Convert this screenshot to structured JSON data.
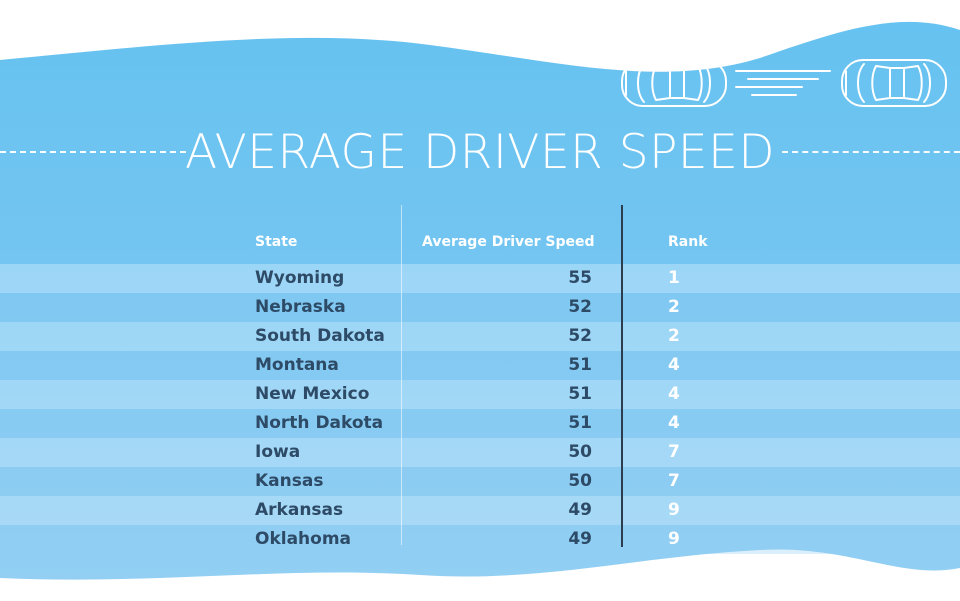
{
  "title": "AVERAGE DRIVER SPEED",
  "colors": {
    "background": "#6cc3ef",
    "row_light": "#a4d6f5",
    "row_dark": "#86c5f0",
    "text_dark": "#2d4a66",
    "white": "#ffffff",
    "separator": "#2d3d50"
  },
  "decoration": {
    "icon": "cars-icon"
  },
  "table": {
    "headers": [
      "State",
      "Average Driver Speed",
      "Rank"
    ],
    "rows": [
      {
        "state": "Wyoming",
        "speed": "55",
        "rank": "1"
      },
      {
        "state": "Nebraska",
        "speed": "52",
        "rank": "2"
      },
      {
        "state": "South Dakota",
        "speed": "52",
        "rank": "2"
      },
      {
        "state": "Montana",
        "speed": "51",
        "rank": "4"
      },
      {
        "state": "New Mexico",
        "speed": "51",
        "rank": "4"
      },
      {
        "state": "North Dakota",
        "speed": "51",
        "rank": "4"
      },
      {
        "state": "Iowa",
        "speed": "50",
        "rank": "7"
      },
      {
        "state": "Kansas",
        "speed": "50",
        "rank": "7"
      },
      {
        "state": "Arkansas",
        "speed": "49",
        "rank": "9"
      },
      {
        "state": "Oklahoma",
        "speed": "49",
        "rank": "9"
      }
    ]
  }
}
